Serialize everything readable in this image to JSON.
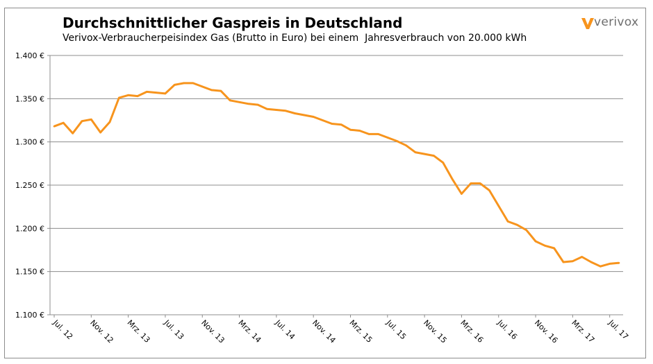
{
  "chart_data": {
    "type": "line",
    "title": "Durchschnittlicher Gaspreis in Deutschland",
    "subtitle": "Verivox-Verbraucherpeisindex Gas (Brutto in Euro) bei einem  Jahresverbrauch von 20.000 kWh",
    "xlabel": "",
    "ylabel": "",
    "ylim": [
      1100,
      1400
    ],
    "y_ticks": [
      "1.100 €",
      "1.150 €",
      "1.200 €",
      "1.250 €",
      "1.300 €",
      "1.350 €",
      "1.400 €"
    ],
    "x_tick_labels": [
      "Jul. 12",
      "Nov. 12",
      "Mrz. 13",
      "Jul. 13",
      "Nov. 13",
      "Mrz. 14",
      "Jul. 14",
      "Nov. 14",
      "Mrz. 15",
      "Jul. 15",
      "Nov. 15",
      "Mrz. 16",
      "Jul. 16",
      "Nov. 16",
      "Mrz. 17",
      "Jul. 17"
    ],
    "x_label_every": 4,
    "grid": true,
    "series_color": "#f7941d",
    "series": [
      {
        "values": [
          1318,
          1322,
          1310,
          1324,
          1326,
          1311,
          1323,
          1351,
          1354,
          1353,
          1358,
          1357,
          1356,
          1366,
          1368,
          1368,
          1364,
          1360,
          1359,
          1348,
          1346,
          1344,
          1343,
          1338,
          1337,
          1336,
          1333,
          1331,
          1329,
          1325,
          1321,
          1320,
          1314,
          1313,
          1309,
          1309,
          1305,
          1301,
          1296,
          1288,
          1286,
          1284,
          1276,
          1257,
          1240,
          1252,
          1252,
          1244,
          1226,
          1208,
          1204,
          1198,
          1185,
          1180,
          1177,
          1161,
          1162,
          1167,
          1161,
          1156,
          1159,
          1160
        ]
      }
    ]
  },
  "logo": {
    "text": "verivox",
    "color": "#f7941d"
  }
}
